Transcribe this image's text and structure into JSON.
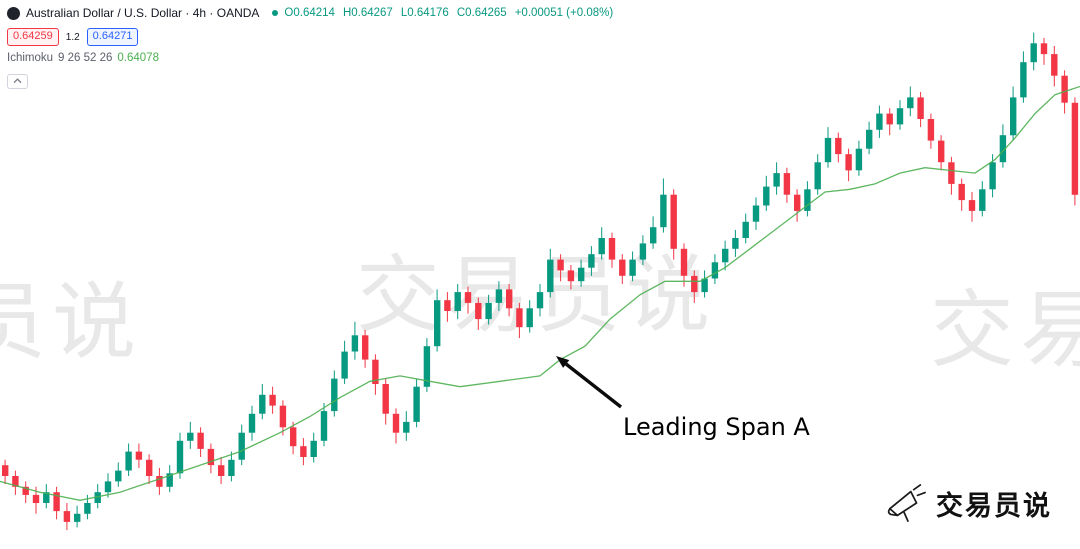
{
  "colors": {
    "up_candle": "#089981",
    "down_candle": "#f23645",
    "bid": "#f23645",
    "ask": "#2962ff",
    "span_a_line": "#4caf50",
    "ohlc_text": "#089981",
    "watermark": "#e8e8e8"
  },
  "header": {
    "symbol_title": "Australian Dollar / U.S. Dollar · 4h · OANDA",
    "ohlc": {
      "o_label": "O",
      "o_value": "0.64214",
      "h_label": "H",
      "h_value": "0.64267",
      "l_label": "L",
      "l_value": "0.64176",
      "c_label": "C",
      "c_value": "0.64265",
      "change": "+0.00051 (+0.08%)"
    },
    "bid": "0.64259",
    "spread": "1.2",
    "ask": "0.64271",
    "indicator": {
      "name": "Ichimoku",
      "params": "9 26 52 26",
      "value": "0.64078"
    }
  },
  "annotation": {
    "label": "Leading Span A",
    "points_to": "leading-span-a-line"
  },
  "watermark": {
    "text": "交易员说"
  },
  "logo": {
    "text": "交易员说"
  },
  "chart_data": {
    "type": "candlestick",
    "symbol": "AUD/USD",
    "timeframe": "4h",
    "grid": false,
    "x_axis": "hidden",
    "y_axis": "hidden",
    "ylim": [
      0.6245,
      0.6448
    ],
    "candle_format": [
      "open",
      "high",
      "low",
      "close"
    ],
    "candles": [
      [
        0.6276,
        0.6278,
        0.6269,
        0.6272
      ],
      [
        0.6272,
        0.6274,
        0.6265,
        0.6268
      ],
      [
        0.6268,
        0.627,
        0.6262,
        0.6265
      ],
      [
        0.6265,
        0.6268,
        0.6258,
        0.6262
      ],
      [
        0.6262,
        0.6269,
        0.626,
        0.6266
      ],
      [
        0.6266,
        0.6268,
        0.6256,
        0.6259
      ],
      [
        0.6259,
        0.6262,
        0.6252,
        0.6255
      ],
      [
        0.6255,
        0.6261,
        0.6253,
        0.6258
      ],
      [
        0.6258,
        0.6265,
        0.6256,
        0.6262
      ],
      [
        0.6262,
        0.6269,
        0.626,
        0.6266
      ],
      [
        0.6266,
        0.6273,
        0.6264,
        0.627
      ],
      [
        0.627,
        0.6277,
        0.6268,
        0.6274
      ],
      [
        0.6274,
        0.6284,
        0.6272,
        0.6281
      ],
      [
        0.6281,
        0.6284,
        0.6275,
        0.6278
      ],
      [
        0.6278,
        0.628,
        0.6269,
        0.6272
      ],
      [
        0.6272,
        0.6275,
        0.6265,
        0.6268
      ],
      [
        0.6268,
        0.6276,
        0.6266,
        0.6273
      ],
      [
        0.6273,
        0.6288,
        0.6271,
        0.6285
      ],
      [
        0.6285,
        0.6292,
        0.6282,
        0.6288
      ],
      [
        0.6288,
        0.629,
        0.6279,
        0.6282
      ],
      [
        0.6282,
        0.6284,
        0.6273,
        0.6276
      ],
      [
        0.6276,
        0.6279,
        0.6269,
        0.6272
      ],
      [
        0.6272,
        0.6281,
        0.627,
        0.6278
      ],
      [
        0.6278,
        0.6291,
        0.6276,
        0.6288
      ],
      [
        0.6288,
        0.6298,
        0.6285,
        0.6295
      ],
      [
        0.6295,
        0.6306,
        0.6293,
        0.6302
      ],
      [
        0.6302,
        0.6305,
        0.6295,
        0.6298
      ],
      [
        0.6298,
        0.63,
        0.6287,
        0.629
      ],
      [
        0.629,
        0.6292,
        0.628,
        0.6283
      ],
      [
        0.6283,
        0.6286,
        0.6276,
        0.6279
      ],
      [
        0.6279,
        0.6288,
        0.6277,
        0.6285
      ],
      [
        0.6285,
        0.6299,
        0.6283,
        0.6296
      ],
      [
        0.6296,
        0.6311,
        0.6294,
        0.6308
      ],
      [
        0.6308,
        0.6322,
        0.6306,
        0.6318
      ],
      [
        0.6318,
        0.6329,
        0.6315,
        0.6324
      ],
      [
        0.6324,
        0.6326,
        0.6312,
        0.6315
      ],
      [
        0.6315,
        0.6317,
        0.6302,
        0.6306
      ],
      [
        0.6306,
        0.6308,
        0.6291,
        0.6295
      ],
      [
        0.6295,
        0.6297,
        0.6284,
        0.6288
      ],
      [
        0.6288,
        0.6296,
        0.6285,
        0.6292
      ],
      [
        0.6292,
        0.6308,
        0.629,
        0.6305
      ],
      [
        0.6305,
        0.6323,
        0.6303,
        0.632
      ],
      [
        0.632,
        0.6341,
        0.6318,
        0.6337
      ],
      [
        0.6337,
        0.634,
        0.6329,
        0.6333
      ],
      [
        0.6333,
        0.6343,
        0.633,
        0.634
      ],
      [
        0.634,
        0.6342,
        0.6332,
        0.6336
      ],
      [
        0.6336,
        0.6338,
        0.6326,
        0.633
      ],
      [
        0.633,
        0.6339,
        0.6328,
        0.6336
      ],
      [
        0.6336,
        0.6344,
        0.6333,
        0.6341
      ],
      [
        0.6341,
        0.6343,
        0.6331,
        0.6334
      ],
      [
        0.6334,
        0.6336,
        0.6323,
        0.6327
      ],
      [
        0.6327,
        0.6337,
        0.6325,
        0.6334
      ],
      [
        0.6334,
        0.6343,
        0.6331,
        0.634
      ],
      [
        0.634,
        0.6356,
        0.6338,
        0.6352
      ],
      [
        0.6352,
        0.6354,
        0.6344,
        0.6348
      ],
      [
        0.6348,
        0.635,
        0.6341,
        0.6344
      ],
      [
        0.6344,
        0.6352,
        0.6342,
        0.6349
      ],
      [
        0.6349,
        0.6357,
        0.6346,
        0.6354
      ],
      [
        0.6354,
        0.6364,
        0.6352,
        0.636
      ],
      [
        0.636,
        0.6362,
        0.6349,
        0.6352
      ],
      [
        0.6352,
        0.6354,
        0.6343,
        0.6346
      ],
      [
        0.6346,
        0.6355,
        0.6344,
        0.6352
      ],
      [
        0.6352,
        0.6361,
        0.635,
        0.6358
      ],
      [
        0.6358,
        0.6368,
        0.6356,
        0.6364
      ],
      [
        0.6364,
        0.6382,
        0.6362,
        0.6376
      ],
      [
        0.6376,
        0.6378,
        0.6352,
        0.6356
      ],
      [
        0.6356,
        0.6358,
        0.6342,
        0.6346
      ],
      [
        0.6346,
        0.6348,
        0.6336,
        0.634
      ],
      [
        0.634,
        0.6348,
        0.6338,
        0.6345
      ],
      [
        0.6345,
        0.6354,
        0.6343,
        0.6351
      ],
      [
        0.6351,
        0.6359,
        0.6348,
        0.6356
      ],
      [
        0.6356,
        0.6363,
        0.6353,
        0.636
      ],
      [
        0.636,
        0.6369,
        0.6358,
        0.6366
      ],
      [
        0.6366,
        0.6375,
        0.6363,
        0.6372
      ],
      [
        0.6372,
        0.6383,
        0.637,
        0.6379
      ],
      [
        0.6379,
        0.6388,
        0.6376,
        0.6384
      ],
      [
        0.6384,
        0.6386,
        0.6373,
        0.6376
      ],
      [
        0.6376,
        0.6378,
        0.6366,
        0.637
      ],
      [
        0.637,
        0.6381,
        0.6368,
        0.6378
      ],
      [
        0.6378,
        0.6391,
        0.6376,
        0.6388
      ],
      [
        0.6388,
        0.6401,
        0.6386,
        0.6397
      ],
      [
        0.6397,
        0.6399,
        0.6388,
        0.6391
      ],
      [
        0.6391,
        0.6393,
        0.6381,
        0.6385
      ],
      [
        0.6385,
        0.6396,
        0.6383,
        0.6393
      ],
      [
        0.6393,
        0.6403,
        0.6391,
        0.64
      ],
      [
        0.64,
        0.6409,
        0.6397,
        0.6406
      ],
      [
        0.6406,
        0.6408,
        0.6398,
        0.6402
      ],
      [
        0.6402,
        0.6411,
        0.64,
        0.6408
      ],
      [
        0.6408,
        0.6416,
        0.6405,
        0.6412
      ],
      [
        0.6412,
        0.6414,
        0.6401,
        0.6404
      ],
      [
        0.6404,
        0.6406,
        0.6393,
        0.6396
      ],
      [
        0.6396,
        0.6398,
        0.6385,
        0.6388
      ],
      [
        0.6388,
        0.639,
        0.6376,
        0.638
      ],
      [
        0.638,
        0.6382,
        0.637,
        0.6374
      ],
      [
        0.6374,
        0.6377,
        0.6366,
        0.637
      ],
      [
        0.637,
        0.6381,
        0.6368,
        0.6378
      ],
      [
        0.6378,
        0.6391,
        0.6375,
        0.6388
      ],
      [
        0.6388,
        0.6402,
        0.6386,
        0.6398
      ],
      [
        0.6398,
        0.6416,
        0.6396,
        0.6412
      ],
      [
        0.6412,
        0.6429,
        0.641,
        0.6425
      ],
      [
        0.6425,
        0.6436,
        0.6422,
        0.6432
      ],
      [
        0.6432,
        0.6434,
        0.6424,
        0.6428
      ],
      [
        0.6428,
        0.6431,
        0.6416,
        0.642
      ],
      [
        0.642,
        0.6422,
        0.6406,
        0.641
      ],
      [
        0.641,
        0.6412,
        0.6372,
        0.6376
      ]
    ],
    "overlays": [
      {
        "name": "Ichimoku Leading Span A",
        "type": "line",
        "color": "#4caf50",
        "points": [
          [
            0,
            0.627
          ],
          [
            40,
            0.6266
          ],
          [
            80,
            0.6263
          ],
          [
            120,
            0.6266
          ],
          [
            160,
            0.6271
          ],
          [
            200,
            0.6276
          ],
          [
            240,
            0.6281
          ],
          [
            280,
            0.6288
          ],
          [
            310,
            0.6294
          ],
          [
            340,
            0.6301
          ],
          [
            370,
            0.6307
          ],
          [
            400,
            0.6309
          ],
          [
            430,
            0.6307
          ],
          [
            460,
            0.6305
          ],
          [
            500,
            0.6307
          ],
          [
            540,
            0.6309
          ],
          [
            560,
            0.6315
          ],
          [
            585,
            0.632
          ],
          [
            610,
            0.633
          ],
          [
            640,
            0.6339
          ],
          [
            665,
            0.6344
          ],
          [
            700,
            0.6344
          ],
          [
            725,
            0.6349
          ],
          [
            750,
            0.6356
          ],
          [
            775,
            0.6363
          ],
          [
            800,
            0.637
          ],
          [
            825,
            0.6377
          ],
          [
            850,
            0.6378
          ],
          [
            875,
            0.638
          ],
          [
            900,
            0.6384
          ],
          [
            925,
            0.6386
          ],
          [
            950,
            0.6385
          ],
          [
            975,
            0.6384
          ],
          [
            995,
            0.6389
          ],
          [
            1015,
            0.6397
          ],
          [
            1035,
            0.6406
          ],
          [
            1055,
            0.6413
          ],
          [
            1080,
            0.6416
          ]
        ]
      }
    ]
  }
}
